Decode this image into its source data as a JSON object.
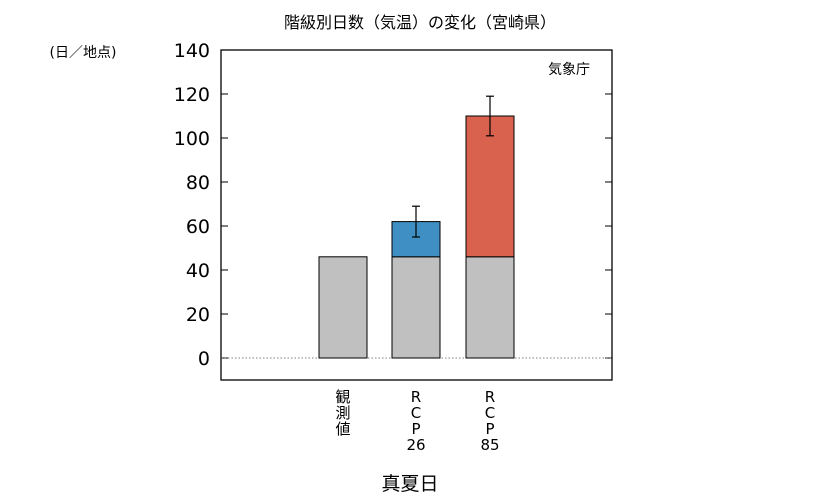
{
  "chart_data": {
    "type": "bar",
    "title": "階級別日数（気温）の変化（宮崎県）",
    "ylabel": "(日／地点)",
    "xlabel": "真夏日",
    "source_label": "気象庁",
    "ylim": [
      -10,
      140
    ],
    "yticks": [
      0,
      20,
      40,
      60,
      80,
      100,
      120,
      140
    ],
    "categories": [
      [
        "観",
        "測",
        "値"
      ],
      [
        "R",
        "C",
        "P",
        "26"
      ],
      [
        "R",
        "C",
        "P",
        "85"
      ]
    ],
    "series": [
      {
        "name": "",
        "values": [
          46,
          46,
          46
        ],
        "color": "#c0c0c0"
      },
      {
        "name": "",
        "values": [
          0,
          16,
          64
        ],
        "colors": [
          null,
          "#3f8fc4",
          "#d9624e"
        ]
      }
    ],
    "totals": [
      46,
      62,
      110
    ],
    "error_bars": [
      null,
      {
        "low": 55,
        "high": 69
      },
      {
        "low": 101,
        "high": 119
      }
    ]
  }
}
